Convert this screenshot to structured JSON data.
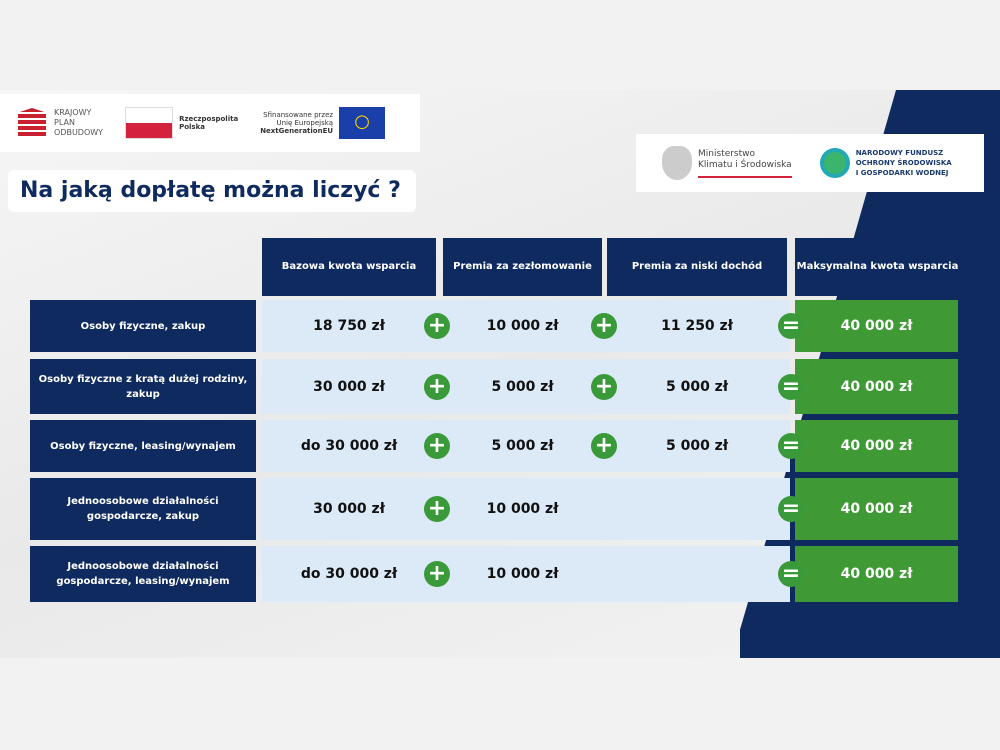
{
  "logos": {
    "kpo": [
      "KRAJOWY",
      "PLAN",
      "ODBUDOWY"
    ],
    "rp": [
      "Rzeczpospolita",
      "Polska"
    ],
    "eu": [
      "Sfinansowane przez",
      "Unię Europejską",
      "NextGenerationEU"
    ],
    "ministry": [
      "Ministerstwo",
      "Klimatu i Środowiska"
    ],
    "nfos": [
      "NARODOWY FUNDUSZ",
      "OCHRONY ŚRODOWISKA",
      "I GOSPODARKI WODNEJ"
    ]
  },
  "title": "Na jaką dopłatę można liczyć ?",
  "headers": [
    "Bazowa kwota wsparcia",
    "Premia za zezłomowanie",
    "Premia za niski dochód",
    "Maksymalna kwota wsparcia"
  ],
  "rows": [
    {
      "label": "Osoby fizyczne, zakup",
      "base": "18 750 zł",
      "scrap": "10 000 zł",
      "income": "11 250 zł",
      "max": "40 000 zł"
    },
    {
      "label": "Osoby fizyczne z kratą dużej rodziny, zakup",
      "base": "30 000 zł",
      "scrap": "5 000 zł",
      "income": "5 000 zł",
      "max": "40 000 zł"
    },
    {
      "label": "Osoby fizyczne, leasing/wynajem",
      "base": "do 30 000 zł",
      "scrap": "5 000 zł",
      "income": "5 000 zł",
      "max": "40 000 zł"
    },
    {
      "label": "Jednoosobowe działalności gospodarcze, zakup",
      "base": "30 000 zł",
      "scrap": "10 000 zł",
      "income": "",
      "max": "40 000 zł"
    },
    {
      "label": "Jednoosobowe działalności gospodarcze, leasing/wynajem",
      "base": "do 30 000 zł",
      "scrap": "10 000 zł",
      "income": "",
      "max": "40 000 zł"
    }
  ],
  "operators": {
    "plus": "+",
    "equals": "="
  },
  "colors": {
    "navy": "#0f2a5e",
    "green": "#3f9a35",
    "cell": "#dce9f7"
  }
}
